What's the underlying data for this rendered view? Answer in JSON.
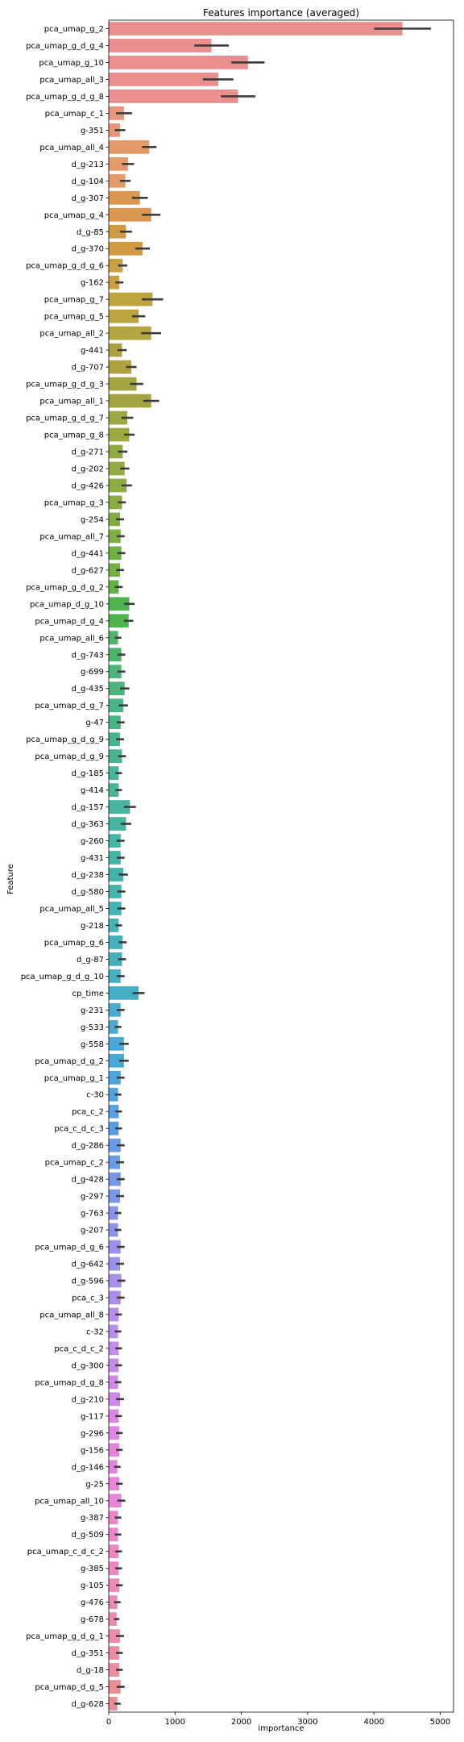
{
  "chart_data": {
    "type": "bar",
    "orientation": "horizontal",
    "title": "Features importance (averaged)",
    "xlabel": "importance",
    "ylabel": "Feature",
    "xlim": [
      0,
      5200
    ],
    "xticks": [
      0,
      1000,
      2000,
      3000,
      4000,
      5000
    ],
    "grid": false,
    "bars": [
      {
        "feature": "pca_umap_g_2",
        "value": 4430,
        "err": 430,
        "color": "#ea8e8e"
      },
      {
        "feature": "pca_umap_g_d_g_4",
        "value": 1550,
        "err": 260,
        "color": "#ea8e8e"
      },
      {
        "feature": "pca_umap_g_10",
        "value": 2100,
        "err": 250,
        "color": "#ea8e8e"
      },
      {
        "feature": "pca_umap_all_3",
        "value": 1650,
        "err": 230,
        "color": "#ea8e8e"
      },
      {
        "feature": "pca_umap_g_d_g_8",
        "value": 1950,
        "err": 260,
        "color": "#ea8e8e"
      },
      {
        "feature": "pca_umap_c_1",
        "value": 230,
        "err": 120,
        "color": "#e8957d"
      },
      {
        "feature": "g-351",
        "value": 170,
        "err": 80,
        "color": "#e8957d"
      },
      {
        "feature": "pca_umap_all_4",
        "value": 610,
        "err": 110,
        "color": "#e49a6b"
      },
      {
        "feature": "d_g-213",
        "value": 290,
        "err": 90,
        "color": "#e49a6b"
      },
      {
        "feature": "d_g-104",
        "value": 250,
        "err": 80,
        "color": "#e49a6b"
      },
      {
        "feature": "d_g-307",
        "value": 470,
        "err": 120,
        "color": "#db9650"
      },
      {
        "feature": "pca_umap_g_4",
        "value": 640,
        "err": 140,
        "color": "#db9650"
      },
      {
        "feature": "d_g-85",
        "value": 260,
        "err": 90,
        "color": "#d39a44"
      },
      {
        "feature": "d_g-370",
        "value": 510,
        "err": 110,
        "color": "#d39a44"
      },
      {
        "feature": "pca_umap_g_d_g_6",
        "value": 210,
        "err": 70,
        "color": "#c9a042"
      },
      {
        "feature": "g-162",
        "value": 160,
        "err": 60,
        "color": "#c9a042"
      },
      {
        "feature": "pca_umap_g_7",
        "value": 660,
        "err": 160,
        "color": "#bda43f"
      },
      {
        "feature": "pca_umap_g_5",
        "value": 450,
        "err": 100,
        "color": "#bda43f"
      },
      {
        "feature": "pca_umap_all_2",
        "value": 640,
        "err": 150,
        "color": "#b3a640"
      },
      {
        "feature": "g-441",
        "value": 200,
        "err": 70,
        "color": "#aca340"
      },
      {
        "feature": "d_g-707",
        "value": 340,
        "err": 80,
        "color": "#aca340"
      },
      {
        "feature": "pca_umap_g_d_g_3",
        "value": 420,
        "err": 100,
        "color": "#a4a540"
      },
      {
        "feature": "pca_umap_all_1",
        "value": 640,
        "err": 120,
        "color": "#a4a540"
      },
      {
        "feature": "pca_umap_g_d_g_7",
        "value": 280,
        "err": 90,
        "color": "#9caa41"
      },
      {
        "feature": "pca_umap_g_8",
        "value": 310,
        "err": 80,
        "color": "#9caa41"
      },
      {
        "feature": "d_g-271",
        "value": 210,
        "err": 70,
        "color": "#92aa42"
      },
      {
        "feature": "d_g-202",
        "value": 240,
        "err": 70,
        "color": "#92aa42"
      },
      {
        "feature": "d_g-426",
        "value": 270,
        "err": 80,
        "color": "#89ac43"
      },
      {
        "feature": "pca_umap_g_3",
        "value": 200,
        "err": 60,
        "color": "#89ac43"
      },
      {
        "feature": "g-254",
        "value": 170,
        "err": 60,
        "color": "#7fae44"
      },
      {
        "feature": "pca_umap_all_7",
        "value": 180,
        "err": 60,
        "color": "#7fae44"
      },
      {
        "feature": "d_g-441",
        "value": 190,
        "err": 60,
        "color": "#72b046"
      },
      {
        "feature": "d_g-627",
        "value": 170,
        "err": 60,
        "color": "#72b046"
      },
      {
        "feature": "pca_umap_g_d_g_2",
        "value": 150,
        "err": 60,
        "color": "#63b24a"
      },
      {
        "feature": "pca_umap_d_g_10",
        "value": 310,
        "err": 80,
        "color": "#4fb34f"
      },
      {
        "feature": "pca_umap_d_g_4",
        "value": 300,
        "err": 70,
        "color": "#4fb34f"
      },
      {
        "feature": "pca_umap_all_6",
        "value": 140,
        "err": 50,
        "color": "#4db46a"
      },
      {
        "feature": "d_g-743",
        "value": 190,
        "err": 60,
        "color": "#4db46a"
      },
      {
        "feature": "g-699",
        "value": 190,
        "err": 60,
        "color": "#4cb47a"
      },
      {
        "feature": "d_g-435",
        "value": 240,
        "err": 70,
        "color": "#4cb47a"
      },
      {
        "feature": "pca_umap_d_g_7",
        "value": 220,
        "err": 70,
        "color": "#4ab584"
      },
      {
        "feature": "g-47",
        "value": 180,
        "err": 60,
        "color": "#4ab584"
      },
      {
        "feature": "pca_umap_g_d_g_9",
        "value": 170,
        "err": 60,
        "color": "#48b58e"
      },
      {
        "feature": "pca_umap_d_g_9",
        "value": 200,
        "err": 60,
        "color": "#48b58e"
      },
      {
        "feature": "d_g-185",
        "value": 150,
        "err": 50,
        "color": "#47b597"
      },
      {
        "feature": "g-414",
        "value": 150,
        "err": 50,
        "color": "#47b597"
      },
      {
        "feature": "d_g-157",
        "value": 320,
        "err": 90,
        "color": "#45b59f"
      },
      {
        "feature": "d_g-363",
        "value": 260,
        "err": 80,
        "color": "#45b59f"
      },
      {
        "feature": "g-260",
        "value": 180,
        "err": 60,
        "color": "#44b5a6"
      },
      {
        "feature": "g-431",
        "value": 180,
        "err": 60,
        "color": "#44b5a6"
      },
      {
        "feature": "d_g-238",
        "value": 220,
        "err": 70,
        "color": "#43b4ad"
      },
      {
        "feature": "d_g-580",
        "value": 190,
        "err": 60,
        "color": "#43b4ad"
      },
      {
        "feature": "pca_umap_all_5",
        "value": 190,
        "err": 60,
        "color": "#43b3b3"
      },
      {
        "feature": "g-218",
        "value": 150,
        "err": 50,
        "color": "#43b3b3"
      },
      {
        "feature": "pca_umap_g_6",
        "value": 210,
        "err": 60,
        "color": "#44b1ba"
      },
      {
        "feature": "d_g-87",
        "value": 200,
        "err": 60,
        "color": "#44b1ba"
      },
      {
        "feature": "pca_umap_g_d_g_10",
        "value": 180,
        "err": 60,
        "color": "#46b0c1"
      },
      {
        "feature": "cp_time",
        "value": 450,
        "err": 90,
        "color": "#47aec7"
      },
      {
        "feature": "g-231",
        "value": 180,
        "err": 60,
        "color": "#49abce"
      },
      {
        "feature": "g-533",
        "value": 140,
        "err": 50,
        "color": "#49abce"
      },
      {
        "feature": "g-558",
        "value": 230,
        "err": 70,
        "color": "#4aa8d5"
      },
      {
        "feature": "pca_umap_d_g_2",
        "value": 230,
        "err": 70,
        "color": "#4aa8d5"
      },
      {
        "feature": "pca_umap_g_1",
        "value": 180,
        "err": 60,
        "color": "#4fa4dc"
      },
      {
        "feature": "c-30",
        "value": 140,
        "err": 50,
        "color": "#4fa4dc"
      },
      {
        "feature": "pca_c_2",
        "value": 150,
        "err": 50,
        "color": "#589fe1"
      },
      {
        "feature": "pca_c_d_c_3",
        "value": 150,
        "err": 50,
        "color": "#589fe1"
      },
      {
        "feature": "d_g-286",
        "value": 180,
        "err": 60,
        "color": "#6a9be4"
      },
      {
        "feature": "pca_umap_c_2",
        "value": 170,
        "err": 60,
        "color": "#6a9be4"
      },
      {
        "feature": "d_g-428",
        "value": 180,
        "err": 60,
        "color": "#7a97e6"
      },
      {
        "feature": "g-297",
        "value": 170,
        "err": 60,
        "color": "#7a97e6"
      },
      {
        "feature": "g-763",
        "value": 140,
        "err": 50,
        "color": "#8a95e8"
      },
      {
        "feature": "g-207",
        "value": 140,
        "err": 50,
        "color": "#8a95e8"
      },
      {
        "feature": "pca_umap_d_g_6",
        "value": 180,
        "err": 60,
        "color": "#9a93ea"
      },
      {
        "feature": "d_g-642",
        "value": 170,
        "err": 60,
        "color": "#9a93ea"
      },
      {
        "feature": "d_g-596",
        "value": 190,
        "err": 60,
        "color": "#a991eb"
      },
      {
        "feature": "pca_c_3",
        "value": 180,
        "err": 60,
        "color": "#a991eb"
      },
      {
        "feature": "pca_umap_all_8",
        "value": 150,
        "err": 50,
        "color": "#b68eea"
      },
      {
        "feature": "c-32",
        "value": 140,
        "err": 50,
        "color": "#b68eea"
      },
      {
        "feature": "pca_c_d_c_2",
        "value": 150,
        "err": 50,
        "color": "#c48be9"
      },
      {
        "feature": "d_g-300",
        "value": 150,
        "err": 50,
        "color": "#c48be9"
      },
      {
        "feature": "pca_umap_d_g_8",
        "value": 140,
        "err": 50,
        "color": "#cf89e6"
      },
      {
        "feature": "d_g-210",
        "value": 170,
        "err": 60,
        "color": "#cf89e6"
      },
      {
        "feature": "g-117",
        "value": 150,
        "err": 50,
        "color": "#da86e2"
      },
      {
        "feature": "g-296",
        "value": 160,
        "err": 50,
        "color": "#da86e2"
      },
      {
        "feature": "g-156",
        "value": 160,
        "err": 50,
        "color": "#e384dc"
      },
      {
        "feature": "d_g-146",
        "value": 130,
        "err": 50,
        "color": "#e384dc"
      },
      {
        "feature": "g-25",
        "value": 160,
        "err": 50,
        "color": "#e885d4"
      },
      {
        "feature": "pca_umap_all_10",
        "value": 190,
        "err": 60,
        "color": "#e885d4"
      },
      {
        "feature": "g-387",
        "value": 140,
        "err": 50,
        "color": "#ea86cb"
      },
      {
        "feature": "d_g-509",
        "value": 140,
        "err": 50,
        "color": "#ea86cb"
      },
      {
        "feature": "pca_umap_c_d_c_2",
        "value": 150,
        "err": 50,
        "color": "#eb88c0"
      },
      {
        "feature": "g-385",
        "value": 150,
        "err": 50,
        "color": "#eb88c0"
      },
      {
        "feature": "g-105",
        "value": 160,
        "err": 50,
        "color": "#eb8ab5"
      },
      {
        "feature": "g-476",
        "value": 130,
        "err": 50,
        "color": "#eb8ab5"
      },
      {
        "feature": "g-678",
        "value": 120,
        "err": 40,
        "color": "#eb8ca9"
      },
      {
        "feature": "pca_umap_g_d_g_1",
        "value": 170,
        "err": 60,
        "color": "#eb8ca9"
      },
      {
        "feature": "d_g-351",
        "value": 160,
        "err": 50,
        "color": "#ea8d9e"
      },
      {
        "feature": "d_g-18",
        "value": 160,
        "err": 50,
        "color": "#ea8d9e"
      },
      {
        "feature": "pca_umap_d_g_5",
        "value": 180,
        "err": 60,
        "color": "#ea8e94"
      },
      {
        "feature": "d_g-628",
        "value": 130,
        "err": 50,
        "color": "#ea8e94"
      }
    ]
  }
}
